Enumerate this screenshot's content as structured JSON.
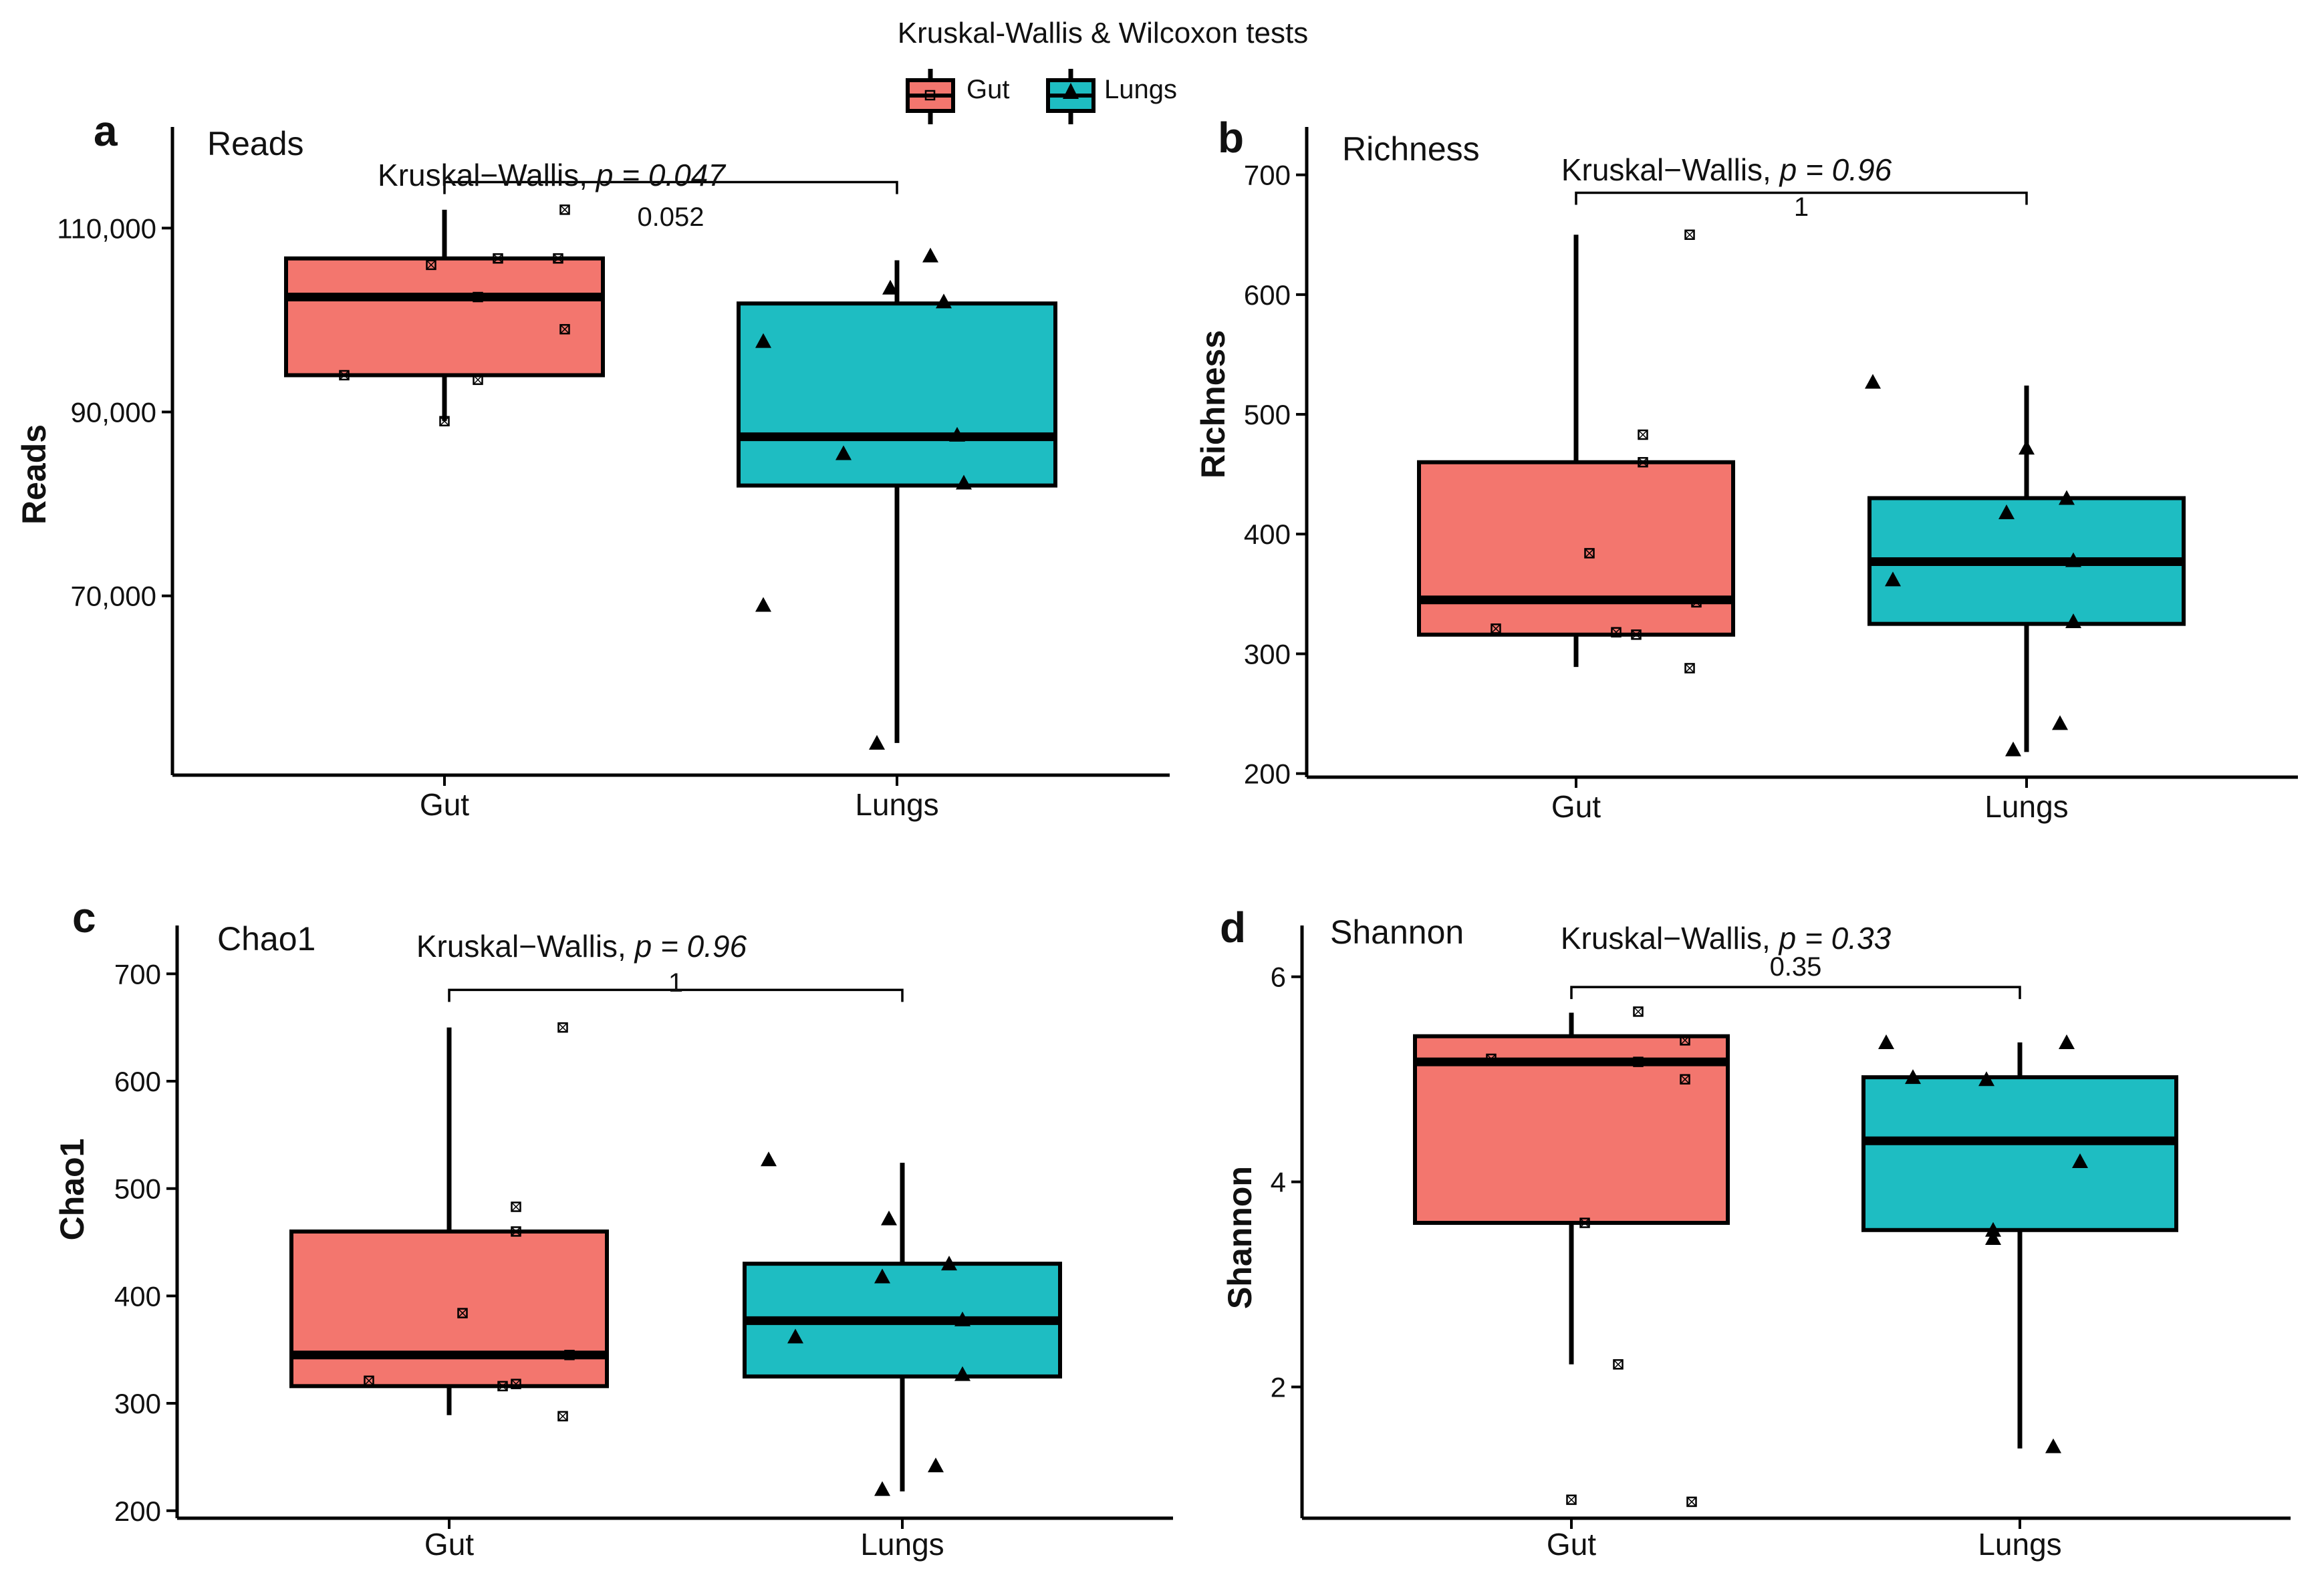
{
  "figure_title": "Kruskal-Wallis & Wilcoxon tests",
  "legend": {
    "position": "top-center",
    "entries": [
      {
        "label": "Gut",
        "color": "#F3766E",
        "shape": "square-cross"
      },
      {
        "label": "Lungs",
        "color": "#1EBDC2",
        "shape": "triangle"
      }
    ]
  },
  "colors": {
    "gut": "#F3766E",
    "lungs": "#1EBDC2",
    "outline": "#000000"
  },
  "chart_data": [
    {
      "type": "box",
      "panel_letter": "a",
      "title": "Reads",
      "ylabel": "Reads",
      "categories": [
        "Gut",
        "Lungs"
      ],
      "ylim": [
        50500,
        121000
      ],
      "yticks": [
        70000,
        90000,
        110000
      ],
      "ytick_labels": [
        "70,000",
        "90,000",
        "110,000"
      ],
      "kruskal_label": "Kruskal−Wallis, ",
      "kruskal_p": "p = 0.047",
      "wilcoxon_p": "0.052",
      "bracket_y": 115000,
      "series": [
        {
          "name": "Gut",
          "q1": 94000,
          "median": 102500,
          "q3": 106700,
          "whisker_low": 89000,
          "whisker_high": 112000,
          "points": [
            [
              0.0,
              89000
            ],
            [
              0.05,
              93500
            ],
            [
              -0.15,
              94000
            ],
            [
              0.18,
              99000
            ],
            [
              0.05,
              102500
            ],
            [
              -0.02,
              106000
            ],
            [
              0.08,
              106700
            ],
            [
              0.17,
              106700
            ],
            [
              0.18,
              112000
            ]
          ]
        },
        {
          "name": "Lungs",
          "q1": 82000,
          "median": 87300,
          "q3": 101800,
          "whisker_low": 54000,
          "whisker_high": 106500,
          "points": [
            [
              -0.2,
              69000
            ],
            [
              -0.08,
              85500
            ],
            [
              0.1,
              82300
            ],
            [
              0.09,
              87500
            ],
            [
              -0.2,
              97700
            ],
            [
              0.07,
              102000
            ],
            [
              -0.01,
              103500
            ],
            [
              0.05,
              107000
            ],
            [
              -0.03,
              54000
            ]
          ]
        }
      ]
    },
    {
      "type": "box",
      "panel_letter": "b",
      "title": "Richness",
      "ylabel": "Richness",
      "categories": [
        "Gut",
        "Lungs"
      ],
      "ylim": [
        197,
        740
      ],
      "yticks": [
        200,
        300,
        400,
        500,
        600,
        700
      ],
      "ytick_labels": [
        "200",
        "300",
        "400",
        "500",
        "600",
        "700"
      ],
      "kruskal_label": "Kruskal−Wallis, ",
      "kruskal_p": "p = 0.96",
      "wilcoxon_p": "1",
      "bracket_y": 685,
      "series": [
        {
          "name": "Gut",
          "q1": 316,
          "median": 345,
          "q3": 460,
          "whisker_low": 289,
          "whisker_high": 650,
          "points": [
            [
              -0.12,
              321
            ],
            [
              0.06,
              318
            ],
            [
              0.09,
              316
            ],
            [
              0.18,
              343
            ],
            [
              0.02,
              384
            ],
            [
              0.1,
              460
            ],
            [
              0.1,
              483
            ],
            [
              0.17,
              650
            ],
            [
              0.17,
              288
            ]
          ]
        },
        {
          "name": "Lungs",
          "q1": 325,
          "median": 377,
          "q3": 430,
          "whisker_low": 218,
          "whisker_high": 524,
          "points": [
            [
              -0.2,
              362
            ],
            [
              -0.03,
              418
            ],
            [
              0.0,
              472
            ],
            [
              0.06,
              430
            ],
            [
              0.07,
              378
            ],
            [
              0.07,
              327
            ],
            [
              0.05,
              242
            ],
            [
              -0.02,
              220
            ],
            [
              -0.23,
              527
            ]
          ]
        }
      ]
    },
    {
      "type": "box",
      "panel_letter": "c",
      "title": "Chao1",
      "ylabel": "Chao1",
      "categories": [
        "Gut",
        "Lungs"
      ],
      "ylim": [
        193,
        745
      ],
      "yticks": [
        200,
        300,
        400,
        500,
        600,
        700
      ],
      "ytick_labels": [
        "200",
        "300",
        "400",
        "500",
        "600",
        "700"
      ],
      "kruskal_label": "Kruskal−Wallis, ",
      "kruskal_p": "p = 0.96",
      "wilcoxon_p": "1",
      "bracket_y": 685,
      "series": [
        {
          "name": "Gut",
          "q1": 316,
          "median": 345,
          "q3": 460,
          "whisker_low": 289,
          "whisker_high": 650,
          "points": [
            [
              -0.12,
              321
            ],
            [
              0.08,
              316
            ],
            [
              0.1,
              318
            ],
            [
              0.18,
              345
            ],
            [
              0.02,
              384
            ],
            [
              0.1,
              460
            ],
            [
              0.1,
              483
            ],
            [
              0.17,
              650
            ],
            [
              0.17,
              288
            ]
          ]
        },
        {
          "name": "Lungs",
          "q1": 325,
          "median": 377,
          "q3": 430,
          "whisker_low": 218,
          "whisker_high": 524,
          "points": [
            [
              -0.16,
              362
            ],
            [
              -0.03,
              418
            ],
            [
              -0.02,
              472
            ],
            [
              0.07,
              430
            ],
            [
              0.09,
              378
            ],
            [
              0.09,
              327
            ],
            [
              0.05,
              242
            ],
            [
              -0.03,
              220
            ],
            [
              -0.2,
              527
            ]
          ]
        }
      ]
    },
    {
      "type": "box",
      "panel_letter": "d",
      "title": "Shannon",
      "ylabel": "Shannon",
      "categories": [
        "Gut",
        "Lungs"
      ],
      "ylim": [
        0.72,
        6.5
      ],
      "yticks": [
        2,
        4,
        6
      ],
      "ytick_labels": [
        "2",
        "4",
        "6"
      ],
      "kruskal_label": "Kruskal−Wallis, ",
      "kruskal_p": "p = 0.33",
      "wilcoxon_p": "0.35",
      "bracket_y": 5.9,
      "series": [
        {
          "name": "Gut",
          "q1": 3.6,
          "median": 5.17,
          "q3": 5.42,
          "whisker_low": 2.22,
          "whisker_high": 5.65,
          "points": [
            [
              -0.12,
              5.2
            ],
            [
              0.1,
              5.17
            ],
            [
              0.17,
              5.38
            ],
            [
              0.17,
              5.0
            ],
            [
              0.1,
              5.66
            ],
            [
              0.02,
              3.6
            ],
            [
              0.07,
              2.22
            ],
            [
              0.0,
              0.9
            ],
            [
              0.18,
              0.88
            ]
          ]
        },
        {
          "name": "Lungs",
          "q1": 3.53,
          "median": 4.4,
          "q3": 5.02,
          "whisker_low": 1.4,
          "whisker_high": 5.36,
          "points": [
            [
              -0.2,
              5.36
            ],
            [
              -0.16,
              5.02
            ],
            [
              -0.05,
              5.0
            ],
            [
              0.07,
              5.36
            ],
            [
              0.09,
              4.2
            ],
            [
              -0.04,
              3.45
            ],
            [
              -0.04,
              3.53
            ],
            [
              0.05,
              1.42
            ]
          ]
        }
      ]
    }
  ]
}
